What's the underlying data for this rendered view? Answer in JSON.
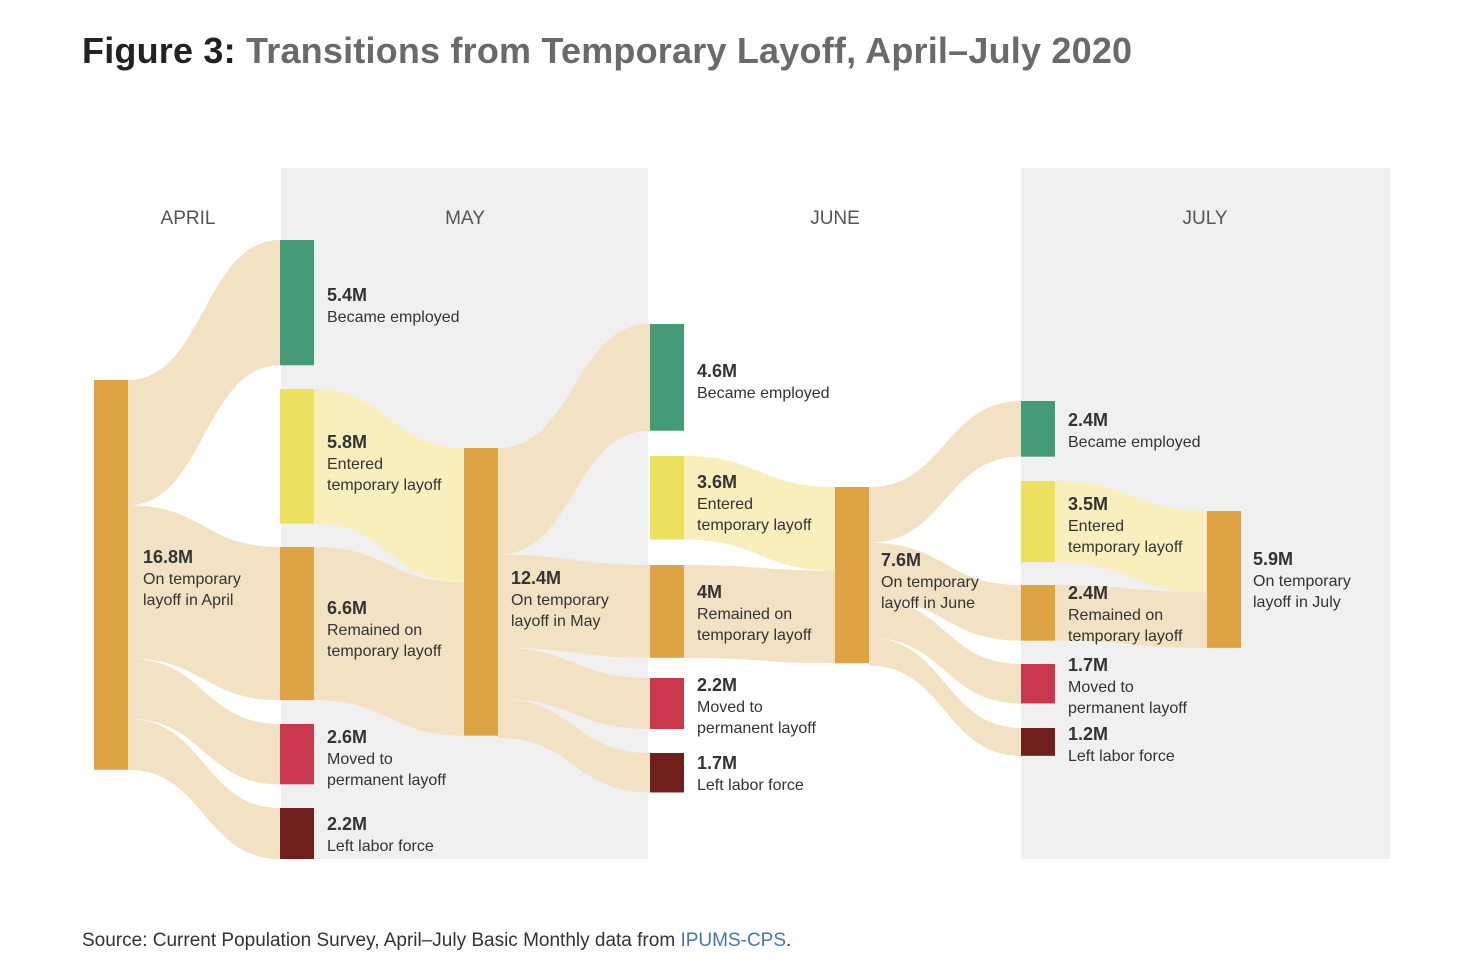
{
  "title": {
    "lead": "Figure 3:",
    "rest": "Transitions from Temporary Layoff, April–July 2020"
  },
  "source": {
    "text": "Source: Current Population Survey, April–July Basic Monthly data from ",
    "link": "IPUMS-CPS",
    "end": "."
  },
  "colors": {
    "employed": "#459a78",
    "entered": "#ece05f",
    "remained": "#dea443",
    "permanent": "#c9384d",
    "left": "#6f1f1c",
    "link": "#f3e1c3",
    "link_entered": "#f8efbd",
    "panel": "#f0f0f0"
  },
  "chart_data": {
    "type": "sankey",
    "title": "Transitions from Temporary Layoff, April–July 2020",
    "units": "millions of people",
    "months": [
      "APRIL",
      "MAY",
      "JUNE",
      "JULY"
    ],
    "nodes": [
      {
        "id": "apr_tl",
        "month": "APRIL",
        "value": 16.8,
        "value_label": "16.8M",
        "lines": [
          "On temporary",
          "layoff in April"
        ],
        "category": "remained"
      },
      {
        "id": "may_emp",
        "month": "MAY",
        "value": 5.4,
        "value_label": "5.4M",
        "lines": [
          "Became employed"
        ],
        "category": "employed"
      },
      {
        "id": "may_ent",
        "month": "MAY",
        "value": 5.8,
        "value_label": "5.8M",
        "lines": [
          "Entered",
          "temporary layoff"
        ],
        "category": "entered"
      },
      {
        "id": "may_rem",
        "month": "MAY",
        "value": 6.6,
        "value_label": "6.6M",
        "lines": [
          "Remained on",
          "temporary layoff"
        ],
        "category": "remained"
      },
      {
        "id": "may_perm",
        "month": "MAY",
        "value": 2.6,
        "value_label": "2.6M",
        "lines": [
          "Moved to",
          "permanent layoff"
        ],
        "category": "permanent"
      },
      {
        "id": "may_left",
        "month": "MAY",
        "value": 2.2,
        "value_label": "2.2M",
        "lines": [
          "Left labor force"
        ],
        "category": "left"
      },
      {
        "id": "may_tl",
        "month": "MAY",
        "value": 12.4,
        "value_label": "12.4M",
        "lines": [
          "On temporary",
          "layoff in May"
        ],
        "category": "remained"
      },
      {
        "id": "jun_emp",
        "month": "JUNE",
        "value": 4.6,
        "value_label": "4.6M",
        "lines": [
          "Became employed"
        ],
        "category": "employed"
      },
      {
        "id": "jun_ent",
        "month": "JUNE",
        "value": 3.6,
        "value_label": "3.6M",
        "lines": [
          "Entered",
          "temporary layoff"
        ],
        "category": "entered"
      },
      {
        "id": "jun_rem",
        "month": "JUNE",
        "value": 4.0,
        "value_label": "4M",
        "lines": [
          "Remained on",
          "temporary layoff"
        ],
        "category": "remained"
      },
      {
        "id": "jun_perm",
        "month": "JUNE",
        "value": 2.2,
        "value_label": "2.2M",
        "lines": [
          "Moved to",
          "permanent layoff"
        ],
        "category": "permanent"
      },
      {
        "id": "jun_left",
        "month": "JUNE",
        "value": 1.7,
        "value_label": "1.7M",
        "lines": [
          "Left labor force"
        ],
        "category": "left"
      },
      {
        "id": "jun_tl",
        "month": "JUNE",
        "value": 7.6,
        "value_label": "7.6M",
        "lines": [
          "On temporary",
          "layoff in June"
        ],
        "category": "remained"
      },
      {
        "id": "jul_emp",
        "month": "JULY",
        "value": 2.4,
        "value_label": "2.4M",
        "lines": [
          "Became employed"
        ],
        "category": "employed"
      },
      {
        "id": "jul_ent",
        "month": "JULY",
        "value": 3.5,
        "value_label": "3.5M",
        "lines": [
          "Entered",
          "temporary layoff"
        ],
        "category": "entered"
      },
      {
        "id": "jul_rem",
        "month": "JULY",
        "value": 2.4,
        "value_label": "2.4M",
        "lines": [
          "Remained on",
          "temporary layoff"
        ],
        "category": "remained"
      },
      {
        "id": "jul_perm",
        "month": "JULY",
        "value": 1.7,
        "value_label": "1.7M",
        "lines": [
          "Moved to",
          "permanent layoff"
        ],
        "category": "permanent"
      },
      {
        "id": "jul_left",
        "month": "JULY",
        "value": 1.2,
        "value_label": "1.2M",
        "lines": [
          "Left labor force"
        ],
        "category": "left"
      },
      {
        "id": "jul_tl",
        "month": "JULY",
        "value": 5.9,
        "value_label": "5.9M",
        "lines": [
          "On temporary",
          "layoff in July"
        ],
        "category": "remained"
      }
    ],
    "links": [
      {
        "source": "apr_tl",
        "target": "may_emp",
        "value": 5.4
      },
      {
        "source": "apr_tl",
        "target": "may_rem",
        "value": 6.6
      },
      {
        "source": "apr_tl",
        "target": "may_perm",
        "value": 2.6
      },
      {
        "source": "apr_tl",
        "target": "may_left",
        "value": 2.2
      },
      {
        "source": "may_ent",
        "target": "may_tl",
        "value": 5.8
      },
      {
        "source": "may_rem",
        "target": "may_tl",
        "value": 6.6
      },
      {
        "source": "may_tl",
        "target": "jun_emp",
        "value": 4.6
      },
      {
        "source": "may_tl",
        "target": "jun_rem",
        "value": 4.0
      },
      {
        "source": "may_tl",
        "target": "jun_perm",
        "value": 2.2
      },
      {
        "source": "may_tl",
        "target": "jun_left",
        "value": 1.7
      },
      {
        "source": "jun_ent",
        "target": "jun_tl",
        "value": 3.6
      },
      {
        "source": "jun_rem",
        "target": "jun_tl",
        "value": 4.0
      },
      {
        "source": "jun_tl",
        "target": "jul_emp",
        "value": 2.4
      },
      {
        "source": "jun_tl",
        "target": "jul_rem",
        "value": 2.4
      },
      {
        "source": "jun_tl",
        "target": "jul_perm",
        "value": 1.7
      },
      {
        "source": "jun_tl",
        "target": "jul_left",
        "value": 1.2
      },
      {
        "source": "jul_ent",
        "target": "jul_tl",
        "value": 3.5
      },
      {
        "source": "jul_rem",
        "target": "jul_tl",
        "value": 2.4
      }
    ]
  }
}
